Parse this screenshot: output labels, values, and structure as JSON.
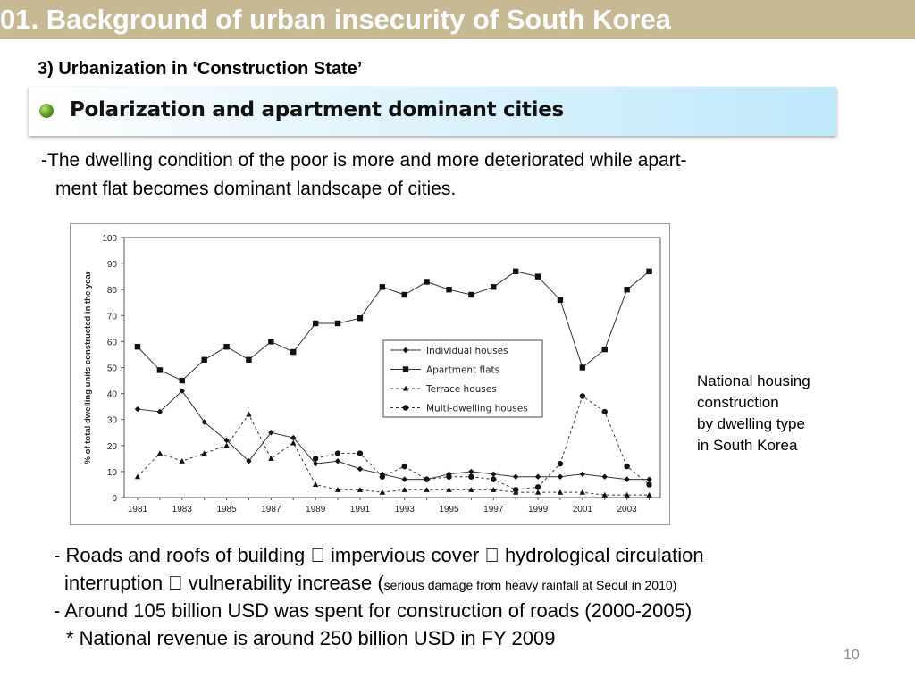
{
  "slide": {
    "title": "01. Background of urban insecurity of South Korea",
    "section_heading": "3) Urbanization in ‘Construction State’",
    "banner_text": "Polarization and apartment dominant cities",
    "intro_line1": "-The dwelling condition of the poor is more and more deteriorated while apart-",
    "intro_line2": "ment flat becomes dominant  landscape of cities.",
    "caption": [
      "National housing",
      "construction",
      "by dwelling type",
      "in South Korea"
    ],
    "bottom": {
      "line1": "- Roads and roofs of building  impervious cover  hydrological circulation",
      "line2_main": "interruption  vulnerability increase (",
      "line2_small": "serious damage from heavy rainfall at Seoul  in 2010)",
      "line3": "- Around 105 billion USD was spent for construction of roads (2000-2005)",
      "line4": "* National revenue is around 250 billion USD in FY 2009"
    },
    "page_number": "10",
    "colors": {
      "title_bar": "#c7b993",
      "banner_start": "#ffffff",
      "banner_end": "#bfe8fb",
      "bullet": "#6aa528"
    }
  },
  "chart_data": {
    "type": "line",
    "title": "",
    "xlabel": "",
    "ylabel": "% of total dwelling units constructed in the year",
    "x": [
      1981,
      1982,
      1983,
      1984,
      1985,
      1986,
      1987,
      1988,
      1989,
      1990,
      1991,
      1992,
      1993,
      1994,
      1995,
      1996,
      1997,
      1998,
      1999,
      2000,
      2001,
      2002,
      2003,
      2004
    ],
    "x_ticks": [
      "1981",
      "1983",
      "1985",
      "1987",
      "1989",
      "1991",
      "1993",
      "1995",
      "1997",
      "1999",
      "2001",
      "2003"
    ],
    "y_ticks": [
      "0",
      "10",
      "20",
      "30",
      "40",
      "50",
      "60",
      "70",
      "80",
      "90",
      "100"
    ],
    "ylim": [
      0,
      100
    ],
    "grid": false,
    "legend_position": "center",
    "series": [
      {
        "name": "Individual houses",
        "marker": "diamond",
        "dashed": false,
        "values": [
          34,
          33,
          41,
          29,
          22,
          14,
          25,
          23,
          13,
          14,
          11,
          9,
          7,
          7,
          9,
          10,
          9,
          8,
          8,
          8,
          9,
          8,
          7,
          7
        ]
      },
      {
        "name": "Apartment flats",
        "marker": "square",
        "dashed": false,
        "values": [
          58,
          49,
          45,
          53,
          58,
          53,
          60,
          56,
          67,
          67,
          69,
          81,
          78,
          83,
          80,
          78,
          81,
          87,
          85,
          76,
          50,
          57,
          80,
          87
        ]
      },
      {
        "name": "Terrace houses",
        "marker": "triangle",
        "dashed": true,
        "values": [
          8,
          17,
          14,
          17,
          20,
          32,
          15,
          21,
          5,
          3,
          3,
          2,
          3,
          3,
          3,
          3,
          3,
          2,
          2,
          2,
          2,
          1,
          1,
          1
        ]
      },
      {
        "name": "Multi-dwelling houses",
        "marker": "circle",
        "dashed": true,
        "values": [
          null,
          null,
          null,
          null,
          null,
          null,
          null,
          null,
          15,
          17,
          17,
          8,
          12,
          7,
          8,
          8,
          7,
          3,
          4,
          13,
          39,
          33,
          12,
          5
        ]
      }
    ]
  }
}
